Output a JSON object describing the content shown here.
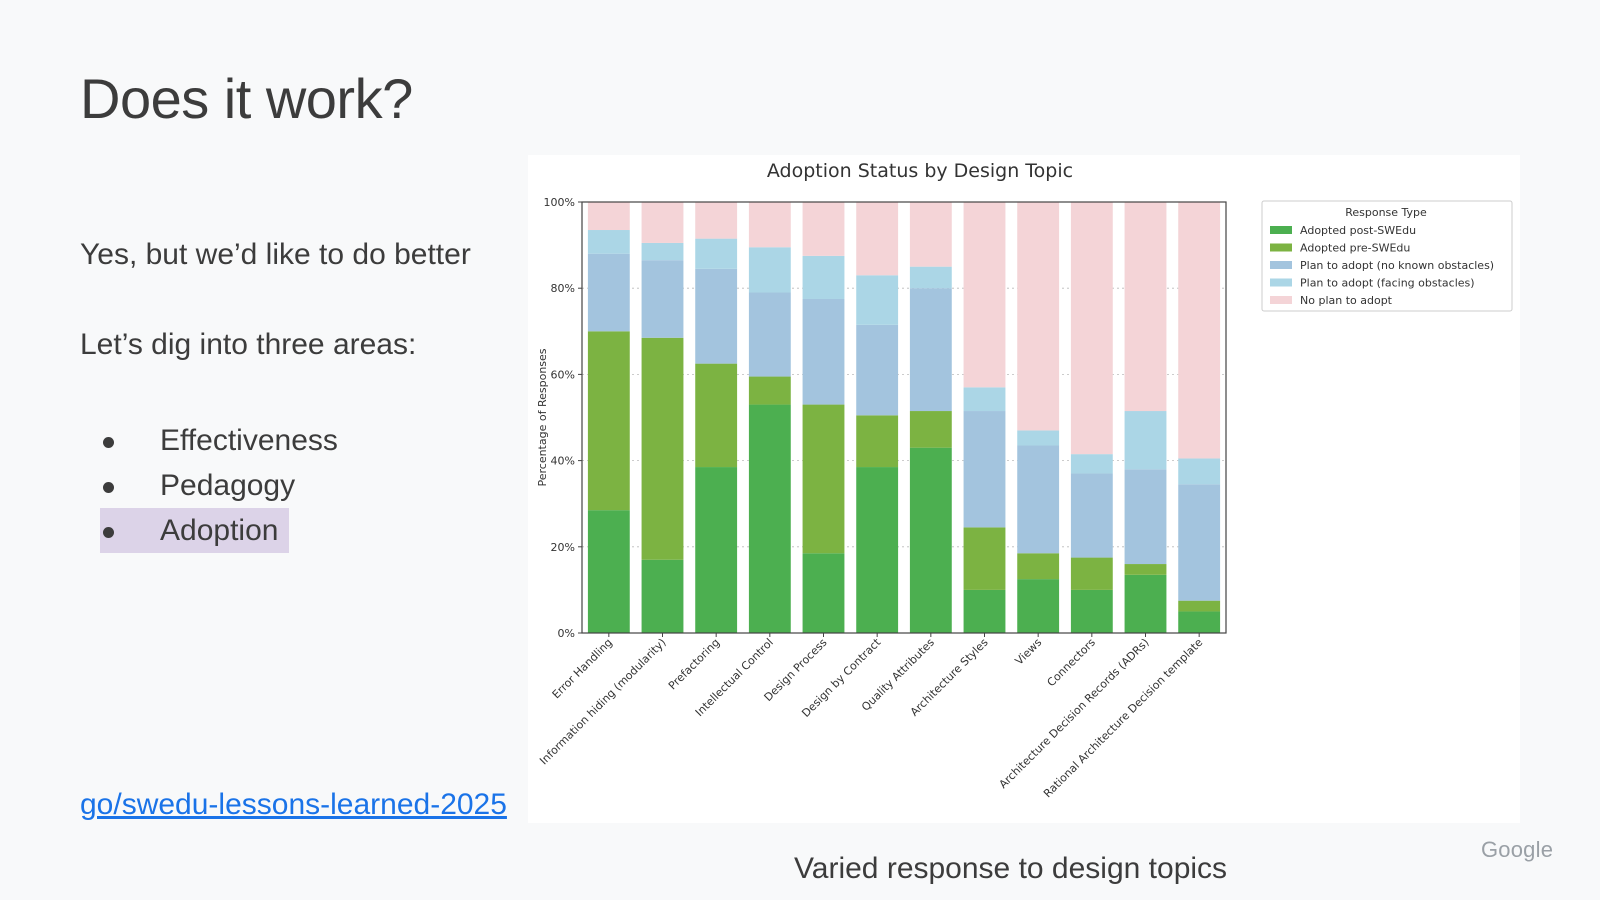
{
  "slide": {
    "title": "Does it work?",
    "line1": "Yes, but we’d like to do better",
    "line2": "Let’s dig into three areas:",
    "bullets": [
      "Effectiveness",
      "Pedagogy",
      "Adoption"
    ],
    "highlighted_bullet": "Adoption",
    "link": "go/swedu-lessons-learned-2025",
    "caption": "Varied response to design topics",
    "logo": "Google"
  },
  "colors": {
    "highlight": "#dcd3e8",
    "link": "#1a73e8",
    "series": [
      "#4caf50",
      "#7cb342",
      "#a3c4de",
      "#abd6e6",
      "#f4d4d7"
    ]
  },
  "chart_data": {
    "type": "bar",
    "stacked": true,
    "title": "Adoption Status by Design Topic",
    "xlabel": "",
    "ylabel": "Percentage of Responses",
    "ylim": [
      0,
      100
    ],
    "yticks": [
      "0%",
      "20%",
      "40%",
      "60%",
      "80%",
      "100%"
    ],
    "grid": "horizontal dotted",
    "legend_title": "Response Type",
    "legend_position": "top-right outside",
    "categories": [
      "Error Handling",
      "Information hiding (modularity)",
      "Prefactoring",
      "Intellectual Control",
      "Design Process",
      "Design by Contract",
      "Quality Attributes",
      "Architecture Styles",
      "Views",
      "Connectors",
      "Architecture Decision Records (ADRs)",
      "Rational Architecture Decision template"
    ],
    "series": [
      {
        "name": "Adopted post-SWEdu",
        "values": [
          28.5,
          17,
          38.5,
          53,
          18.5,
          38.5,
          43,
          10,
          12.5,
          10,
          13.5,
          5
        ]
      },
      {
        "name": "Adopted pre-SWEdu",
        "values": [
          41.5,
          51.5,
          24,
          6.5,
          34.5,
          12,
          8.5,
          14.5,
          6,
          7.5,
          2.5,
          2.5
        ]
      },
      {
        "name": "Plan to adopt (no known obstacles)",
        "values": [
          18,
          18,
          22,
          19.5,
          24.5,
          21,
          28.5,
          27,
          25,
          19.5,
          22,
          27
        ]
      },
      {
        "name": "Plan to adopt (facing obstacles)",
        "values": [
          5.5,
          4,
          7,
          10.5,
          10,
          11.5,
          5,
          5.5,
          3.5,
          4.5,
          13.5,
          6
        ]
      },
      {
        "name": "No plan to adopt",
        "values": [
          6.5,
          9.5,
          8.5,
          10.5,
          12.5,
          17,
          15,
          43,
          53,
          58.5,
          48.5,
          59.5
        ]
      }
    ]
  }
}
